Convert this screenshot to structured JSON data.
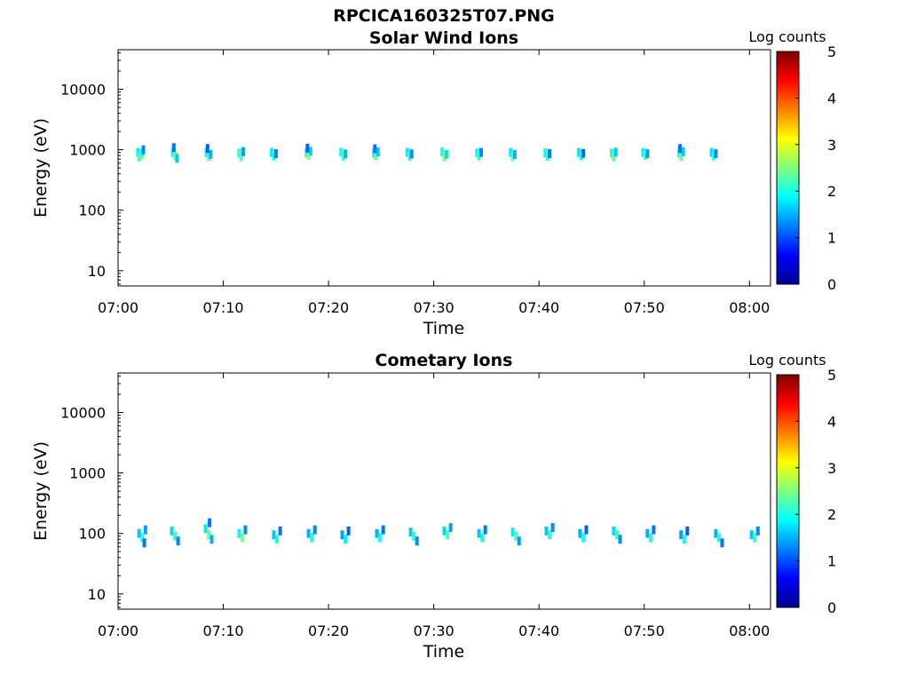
{
  "figure": {
    "title": "RPCICA160325T07.PNG"
  },
  "colorscale": {
    "stops": [
      "#00008f",
      "#0000ff",
      "#007fff",
      "#00ffff",
      "#7fff7f",
      "#ffff00",
      "#ff7f00",
      "#ff0000",
      "#7f0000"
    ],
    "label": "Log counts",
    "ticks": [
      "0",
      "1",
      "2",
      "3",
      "4",
      "5"
    ],
    "range": [
      0,
      5
    ]
  },
  "chart_data": [
    {
      "type": "heatmap",
      "title": "Solar Wind Ions",
      "xlabel": "Time",
      "ylabel": "Energy (eV)",
      "x_ticks": [
        "07:00",
        "07:10",
        "07:20",
        "07:30",
        "07:40",
        "07:50",
        "08:00"
      ],
      "y_ticks": [
        "10",
        "100",
        "1000",
        "10000"
      ],
      "y_scale": "log",
      "xlim_minutes": [
        0,
        62
      ],
      "ylim": [
        5.6,
        45000
      ],
      "colorbar_label": "Log counts",
      "colorbar_range": [
        0,
        5
      ],
      "series": [
        {
          "name": "",
          "points_t_min_E_eV_logc": [
            [
              1.9,
              900,
              1.8
            ],
            [
              2.0,
              760,
              2.2
            ],
            [
              2.2,
              820,
              2.6
            ],
            [
              2.3,
              900,
              2.0
            ],
            [
              2.4,
              1000,
              1.3
            ],
            [
              5.2,
              900,
              2.0
            ],
            [
              5.4,
              800,
              2.5
            ],
            [
              5.6,
              720,
              1.6
            ],
            [
              5.3,
              1080,
              1.2
            ],
            [
              8.4,
              900,
              1.9
            ],
            [
              8.6,
              780,
              2.4
            ],
            [
              8.8,
              840,
              1.5
            ],
            [
              8.5,
              1050,
              1.1
            ],
            [
              11.5,
              880,
              2.1
            ],
            [
              11.7,
              760,
              2.3
            ],
            [
              11.9,
              930,
              1.4
            ],
            [
              14.6,
              900,
              1.8
            ],
            [
              14.8,
              790,
              2.0
            ],
            [
              15.0,
              860,
              1.2
            ],
            [
              17.9,
              880,
              2.0
            ],
            [
              18.1,
              800,
              2.6
            ],
            [
              18.3,
              940,
              1.7
            ],
            [
              18.0,
              1060,
              1.1
            ],
            [
              21.2,
              910,
              1.9
            ],
            [
              21.4,
              780,
              2.3
            ],
            [
              21.6,
              850,
              1.5
            ],
            [
              24.3,
              880,
              2.0
            ],
            [
              24.5,
              790,
              2.4
            ],
            [
              24.7,
              920,
              1.6
            ],
            [
              24.4,
              1040,
              1.2
            ],
            [
              27.5,
              900,
              1.8
            ],
            [
              27.7,
              780,
              2.2
            ],
            [
              27.9,
              850,
              1.3
            ],
            [
              30.8,
              920,
              2.0
            ],
            [
              31.0,
              760,
              2.5
            ],
            [
              31.2,
              840,
              1.7
            ],
            [
              34.1,
              880,
              1.9
            ],
            [
              34.3,
              790,
              2.2
            ],
            [
              34.5,
              900,
              1.3
            ],
            [
              37.3,
              900,
              1.8
            ],
            [
              37.5,
              770,
              2.3
            ],
            [
              37.7,
              840,
              1.5
            ],
            [
              40.6,
              890,
              1.9
            ],
            [
              40.8,
              780,
              2.1
            ],
            [
              41.0,
              860,
              1.2
            ],
            [
              43.8,
              900,
              1.7
            ],
            [
              44.0,
              790,
              2.0
            ],
            [
              44.2,
              870,
              1.1
            ],
            [
              46.9,
              880,
              2.0
            ],
            [
              47.1,
              760,
              2.4
            ],
            [
              47.3,
              910,
              1.6
            ],
            [
              49.9,
              900,
              1.8
            ],
            [
              50.1,
              800,
              2.3
            ],
            [
              50.3,
              860,
              1.4
            ],
            [
              53.3,
              880,
              2.0
            ],
            [
              53.5,
              780,
              2.4
            ],
            [
              53.7,
              930,
              1.6
            ],
            [
              53.4,
              1050,
              1.2
            ],
            [
              56.4,
              900,
              1.7
            ],
            [
              56.6,
              790,
              2.1
            ],
            [
              56.8,
              860,
              1.3
            ]
          ]
        }
      ]
    },
    {
      "type": "heatmap",
      "title": "Cometary Ions",
      "xlabel": "Time",
      "ylabel": "Energy (eV)",
      "x_ticks": [
        "07:00",
        "07:10",
        "07:20",
        "07:30",
        "07:40",
        "07:50",
        "08:00"
      ],
      "y_ticks": [
        "10",
        "100",
        "1000",
        "10000"
      ],
      "y_scale": "log",
      "xlim_minutes": [
        0,
        62
      ],
      "ylim": [
        5.6,
        45000
      ],
      "colorbar_label": "Log counts",
      "colorbar_range": [
        0,
        5
      ],
      "series": [
        {
          "name": "",
          "points_t_min_E_eV_logc": [
            [
              2.0,
              100,
              1.6
            ],
            [
              2.3,
              85,
              2.1
            ],
            [
              2.6,
              115,
              1.4
            ],
            [
              2.5,
              70,
              1.2
            ],
            [
              5.1,
              110,
              1.7
            ],
            [
              5.4,
              90,
              2.2
            ],
            [
              5.7,
              75,
              1.3
            ],
            [
              8.3,
              120,
              1.8
            ],
            [
              8.6,
              95,
              2.4
            ],
            [
              8.9,
              80,
              1.5
            ],
            [
              8.7,
              150,
              1.2
            ],
            [
              11.5,
              100,
              1.9
            ],
            [
              11.8,
              85,
              2.5
            ],
            [
              12.1,
              115,
              1.3
            ],
            [
              14.8,
              95,
              1.6
            ],
            [
              15.1,
              80,
              2.0
            ],
            [
              15.4,
              110,
              1.2
            ],
            [
              18.1,
              100,
              1.5
            ],
            [
              18.4,
              85,
              2.0
            ],
            [
              18.7,
              115,
              1.3
            ],
            [
              21.3,
              95,
              1.4
            ],
            [
              21.6,
              80,
              1.8
            ],
            [
              21.9,
              110,
              1.1
            ],
            [
              24.6,
              100,
              1.5
            ],
            [
              24.9,
              85,
              1.9
            ],
            [
              25.2,
              115,
              1.2
            ],
            [
              27.8,
              105,
              1.6
            ],
            [
              28.1,
              90,
              2.1
            ],
            [
              28.4,
              75,
              1.3
            ],
            [
              31.0,
              110,
              1.7
            ],
            [
              31.3,
              95,
              2.2
            ],
            [
              31.6,
              125,
              1.4
            ],
            [
              34.3,
              100,
              1.6
            ],
            [
              34.6,
              85,
              2.0
            ],
            [
              34.9,
              115,
              1.2
            ],
            [
              37.5,
              105,
              1.8
            ],
            [
              37.8,
              90,
              2.3
            ],
            [
              38.1,
              75,
              1.4
            ],
            [
              40.7,
              110,
              1.6
            ],
            [
              41.0,
              95,
              2.1
            ],
            [
              41.3,
              125,
              1.3
            ],
            [
              43.9,
              100,
              1.5
            ],
            [
              44.2,
              85,
              1.9
            ],
            [
              44.5,
              115,
              1.1
            ],
            [
              47.1,
              110,
              1.7
            ],
            [
              47.4,
              95,
              2.2
            ],
            [
              47.7,
              80,
              1.3
            ],
            [
              50.3,
              100,
              1.5
            ],
            [
              50.6,
              85,
              2.0
            ],
            [
              50.9,
              115,
              1.2
            ],
            [
              53.5,
              95,
              1.4
            ],
            [
              53.8,
              80,
              1.9
            ],
            [
              54.1,
              110,
              1.1
            ],
            [
              56.8,
              100,
              1.5
            ],
            [
              57.1,
              85,
              2.0
            ],
            [
              57.4,
              70,
              1.2
            ],
            [
              60.2,
              95,
              1.6
            ],
            [
              60.5,
              85,
              2.1
            ],
            [
              60.8,
              110,
              1.3
            ]
          ]
        }
      ]
    }
  ]
}
